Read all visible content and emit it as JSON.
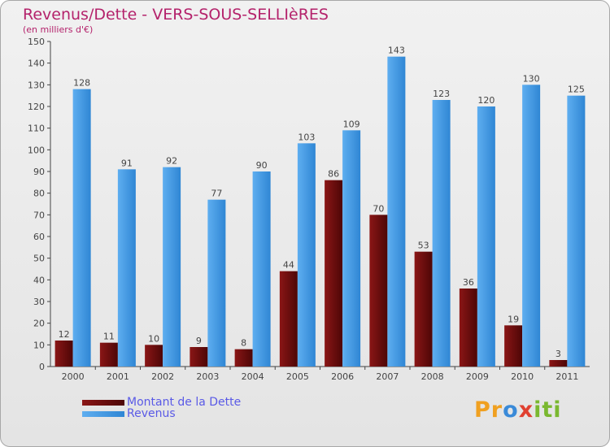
{
  "title": "Revenus/Dette - VERS-SOUS-SELLIèRES",
  "subtitle": "(en milliers d'€)",
  "chart_data": {
    "type": "bar",
    "categories": [
      "2000",
      "2001",
      "2002",
      "2003",
      "2004",
      "2005",
      "2006",
      "2007",
      "2008",
      "2009",
      "2010",
      "2011"
    ],
    "series": [
      {
        "name": "Montant de la Dette",
        "values": [
          12,
          11,
          10,
          9,
          8,
          44,
          86,
          70,
          53,
          36,
          19,
          3
        ],
        "color": "#6b0d0d"
      },
      {
        "name": "Revenus",
        "values": [
          128,
          91,
          92,
          77,
          90,
          103,
          109,
          143,
          123,
          120,
          130,
          125
        ],
        "color": "#4a9ee6"
      }
    ],
    "ylim": [
      0,
      150
    ],
    "yticks": [
      0,
      10,
      20,
      30,
      40,
      50,
      60,
      70,
      80,
      90,
      100,
      110,
      120,
      130,
      140,
      150
    ],
    "grid": false,
    "legend_position": "bottom-left"
  },
  "logo": {
    "letters": [
      "P",
      "r",
      "o",
      "x",
      "i",
      "t",
      "i"
    ],
    "colors": [
      "#f0a020",
      "#f0a020",
      "#3a8ad8",
      "#e04030",
      "#7ab830",
      "#7ab830",
      "#7ab830"
    ]
  }
}
